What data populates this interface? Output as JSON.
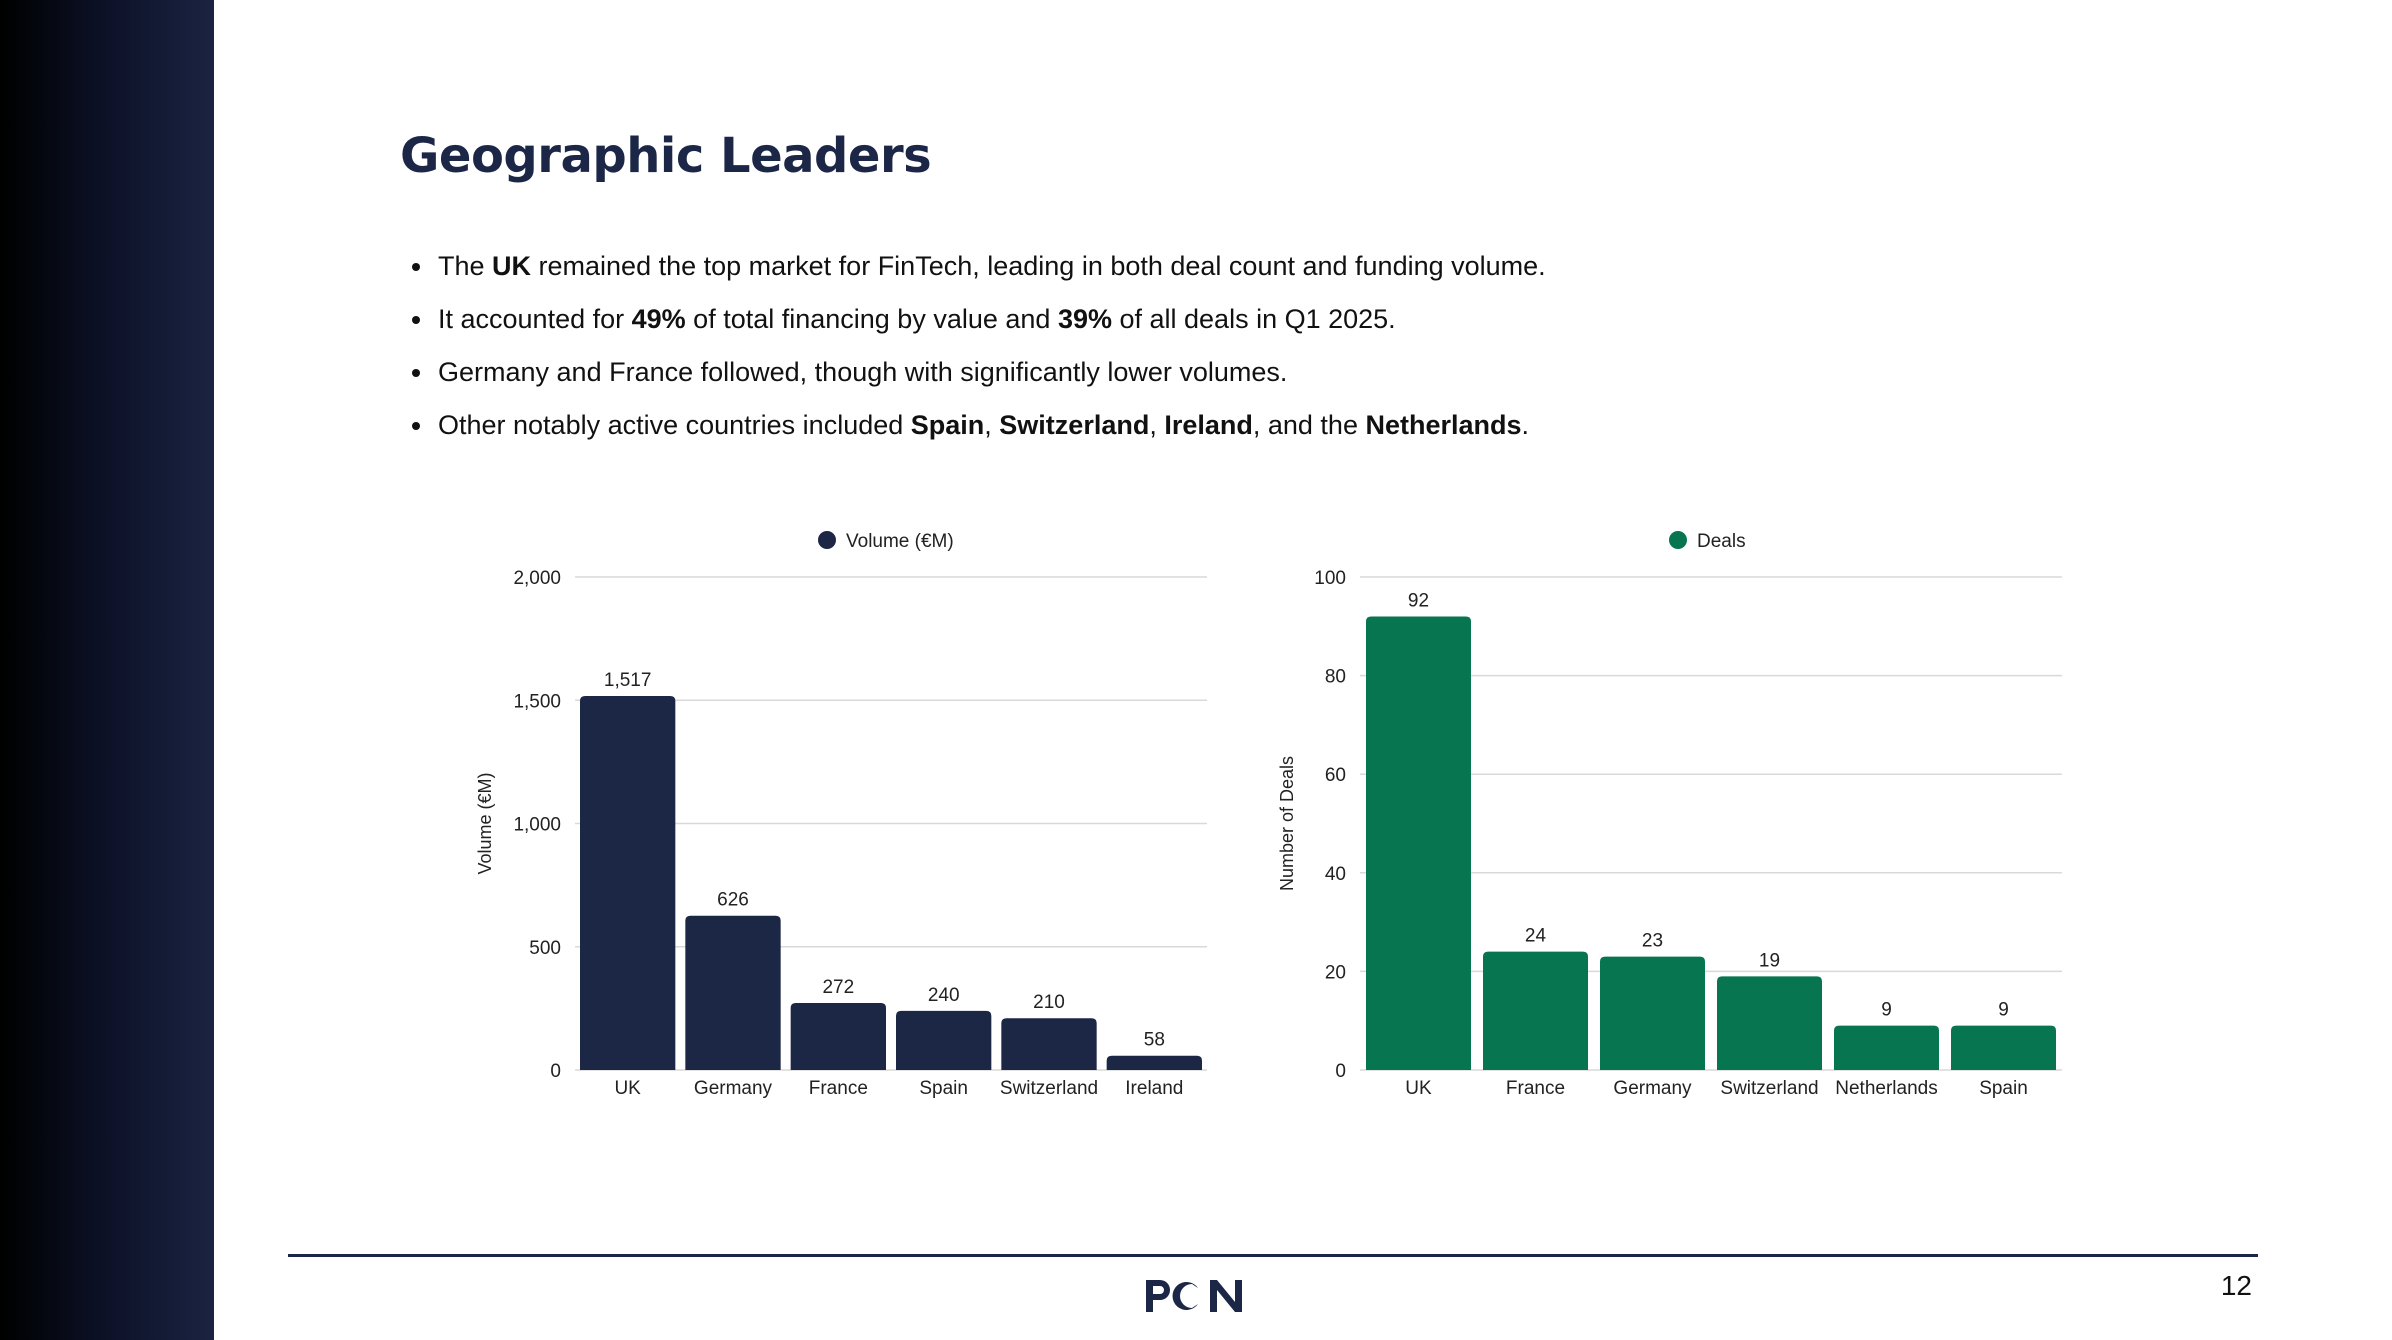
{
  "slide": {
    "title": "Geographic Leaders",
    "page_number": "12",
    "logo_text": "PCN"
  },
  "bullets": [
    {
      "parts": [
        {
          "text": "The ",
          "bold": false
        },
        {
          "text": "UK",
          "bold": true
        },
        {
          "text": " remained the top market for FinTech, leading in both deal count and funding volume.",
          "bold": false
        }
      ]
    },
    {
      "parts": [
        {
          "text": "It accounted for ",
          "bold": false
        },
        {
          "text": "49%",
          "bold": true
        },
        {
          "text": " of total financing by value and ",
          "bold": false
        },
        {
          "text": "39%",
          "bold": true
        },
        {
          "text": " of all deals in Q1 2025.",
          "bold": false
        }
      ]
    },
    {
      "parts": [
        {
          "text": "Germany and France followed, though with significantly lower volumes.",
          "bold": false
        }
      ]
    },
    {
      "parts": [
        {
          "text": "Other notably active countries included ",
          "bold": false
        },
        {
          "text": "Spain",
          "bold": true
        },
        {
          "text": ", ",
          "bold": false
        },
        {
          "text": "Switzerland",
          "bold": true
        },
        {
          "text": ", ",
          "bold": false
        },
        {
          "text": "Ireland",
          "bold": true
        },
        {
          "text": ", and the ",
          "bold": false
        },
        {
          "text": "Netherlands",
          "bold": true
        },
        {
          "text": ".",
          "bold": false
        }
      ]
    }
  ],
  "chart_data": [
    {
      "type": "bar",
      "title": "",
      "xlabel": "",
      "ylabel": "Volume (€M)",
      "legend": "top-center",
      "grid": true,
      "ylim": [
        0,
        2000
      ],
      "yticks": [
        0,
        500,
        1000,
        1500,
        2000
      ],
      "ytick_labels": [
        "0",
        "500",
        "1,000",
        "1,500",
        "2,000"
      ],
      "categories": [
        "UK",
        "Germany",
        "France",
        "Spain",
        "Switzerland",
        "Ireland"
      ],
      "series": [
        {
          "name": "Volume (€M)",
          "color": "#1c2645",
          "values": [
            1517,
            626,
            272,
            240,
            210,
            58
          ],
          "labels": [
            "1,517",
            "626",
            "272",
            "240",
            "210",
            "58"
          ]
        }
      ]
    },
    {
      "type": "bar",
      "title": "",
      "xlabel": "",
      "ylabel": "Number of Deals",
      "legend": "top-center",
      "grid": true,
      "ylim": [
        0,
        100
      ],
      "yticks": [
        0,
        20,
        40,
        60,
        80,
        100
      ],
      "ytick_labels": [
        "0",
        "20",
        "40",
        "60",
        "80",
        "100"
      ],
      "categories": [
        "UK",
        "France",
        "Germany",
        "Switzerland",
        "Netherlands",
        "Spain"
      ],
      "series": [
        {
          "name": "Deals",
          "color": "#067550",
          "values": [
            92,
            24,
            23,
            19,
            9,
            9
          ],
          "labels": [
            "92",
            "24",
            "23",
            "19",
            "9",
            "9"
          ]
        }
      ]
    }
  ]
}
